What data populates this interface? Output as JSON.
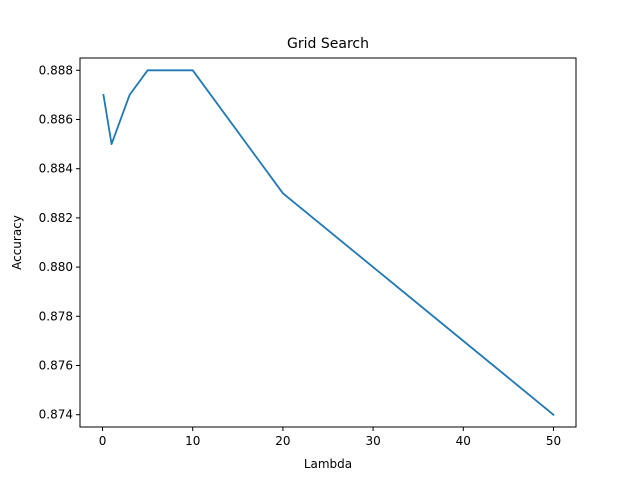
{
  "chart_data": {
    "type": "line",
    "title": "Grid Search",
    "xlabel": "Lambda",
    "ylabel": "Accuracy",
    "xlim": [
      -2.5,
      52.5
    ],
    "ylim": [
      0.8735,
      0.8885
    ],
    "grid": false,
    "xticks": [
      0,
      10,
      20,
      30,
      40,
      50
    ],
    "xtick_labels": [
      "0",
      "10",
      "20",
      "30",
      "40",
      "50"
    ],
    "yticks": [
      0.874,
      0.876,
      0.878,
      0.88,
      0.882,
      0.884,
      0.886,
      0.888
    ],
    "ytick_labels": [
      "0.874",
      "0.876",
      "0.878",
      "0.880",
      "0.882",
      "0.884",
      "0.886",
      "0.888"
    ],
    "series": [
      {
        "color": "#1f77b4",
        "x": [
          0.1,
          1,
          3,
          5,
          10,
          20,
          50
        ],
        "y": [
          0.887,
          0.885,
          0.887,
          0.888,
          0.888,
          0.883,
          0.874
        ]
      }
    ]
  }
}
